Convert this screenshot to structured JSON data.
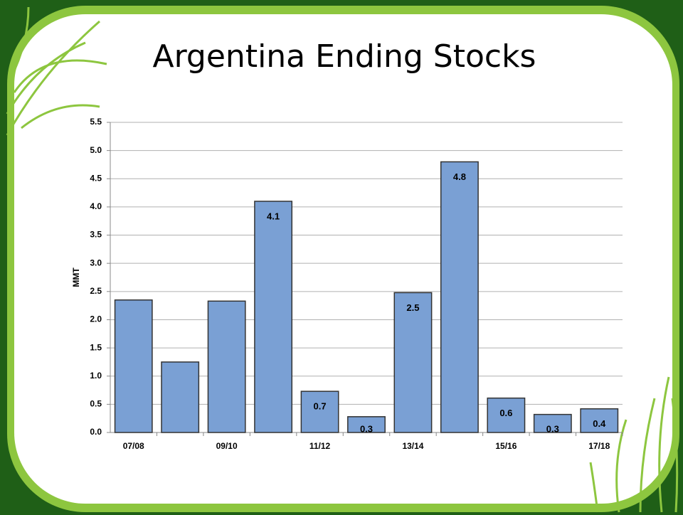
{
  "chart_data": {
    "type": "bar",
    "title": "Argentina Ending Stocks",
    "ylabel": "MMT",
    "categories": [
      "07/08",
      null,
      "09/10",
      null,
      "11/12",
      null,
      "13/14",
      null,
      "15/16",
      null,
      "17/18"
    ],
    "values": [
      2.35,
      1.25,
      2.33,
      4.1,
      0.73,
      0.28,
      2.48,
      4.8,
      0.61,
      0.32,
      0.42
    ],
    "value_labels": [
      null,
      null,
      null,
      "4.1",
      "0.7",
      "0.3",
      "2.5",
      "4.8",
      "0.6",
      "0.3",
      "0.4"
    ],
    "color": "#7aa0d4",
    "ylim": [
      0,
      5.5
    ],
    "yticks": [
      {
        "value": 0,
        "label": "0.0"
      },
      0.5,
      {
        "value": 1,
        "label": "1.0"
      },
      1.5,
      {
        "value": 2,
        "label": "2.0"
      },
      2.5,
      {
        "value": 3,
        "label": "3.0"
      },
      3.5,
      {
        "value": 4,
        "label": "4.0"
      },
      4.5,
      {
        "value": 5,
        "label": "5.0"
      },
      5.5
    ],
    "grid": true
  }
}
